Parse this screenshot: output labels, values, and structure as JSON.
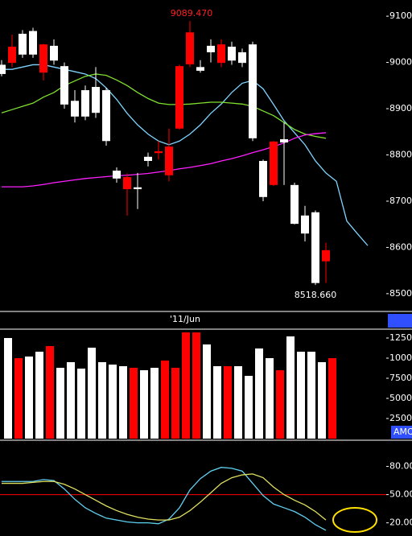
{
  "chart_data": {
    "type": "candlestick",
    "categories": [
      null,
      null,
      null,
      null,
      null,
      null,
      null,
      null,
      null,
      null,
      null,
      null,
      null,
      null,
      null,
      null,
      null,
      "'11/Jun",
      null,
      null,
      null,
      null,
      null,
      null,
      null,
      null,
      null,
      null,
      null,
      null,
      null,
      null,
      null,
      null,
      null,
      null
    ],
    "open": [
      8995,
      8999,
      9062,
      9068,
      8978,
      9036,
      8992,
      8917,
      8940,
      8947,
      8940,
      8766,
      8726,
      8730,
      8796,
      8804,
      8756,
      8857,
      8996,
      8990,
      9036,
      8999,
      9034,
      9022,
      9039,
      8787,
      8735,
      8834,
      8735,
      8669,
      8676,
      8570,
      null,
      null,
      null,
      null
    ],
    "high": [
      9005,
      9060,
      9070,
      9075,
      9040,
      9050,
      9000,
      8940,
      8950,
      8990,
      8945,
      8773,
      8760,
      8761,
      8805,
      8830,
      8857,
      8995,
      9089.47,
      9005,
      9050,
      9050,
      9045,
      9030,
      9045,
      8790,
      8830,
      8870,
      8740,
      8690,
      8680,
      8610,
      null,
      null,
      null,
      null
    ],
    "low": [
      8970,
      8990,
      9010,
      9010,
      8961,
      8995,
      8900,
      8870,
      8875,
      8880,
      8820,
      8740,
      8669,
      8683,
      8775,
      8790,
      8743,
      8855,
      8990,
      8978,
      9000,
      8990,
      8995,
      8990,
      8830,
      8700,
      8733,
      8735,
      8650,
      8613,
      8518.66,
      8523,
      null,
      null,
      null,
      null
    ],
    "close": [
      8975,
      9034,
      9017,
      9017,
      9039,
      9004,
      8909,
      8883,
      8883,
      8891,
      8830,
      8749,
      8752,
      8726,
      8787,
      8808,
      8818,
      8992,
      9065,
      8982,
      9022,
      9039,
      9004,
      8999,
      8836,
      8709,
      8829,
      8827,
      8651,
      8630,
      8523,
      8594,
      null,
      null,
      null,
      null
    ],
    "up_color": "#ff0000",
    "down_color": "#ffffff",
    "ylim": [
      8465,
      9135
    ],
    "yticks": [
      9100,
      9000,
      8900,
      8800,
      8700,
      8600,
      8500
    ],
    "annotations": [
      "9089.470",
      "8518.660"
    ],
    "series": [
      {
        "color": "#7fd4ff",
        "values": [
          8985,
          8985,
          8990,
          8995,
          8995,
          8990,
          8985,
          8980,
          8975,
          8965,
          8945,
          8920,
          8890,
          8865,
          8845,
          8830,
          8822,
          8830,
          8845,
          8865,
          8890,
          8910,
          8935,
          8955,
          8961,
          8943,
          8909,
          8874,
          8848,
          8822,
          8787,
          8761,
          8743,
          8657,
          8630,
          8604
        ]
      },
      {
        "color": "#7fe030",
        "values": [
          8891,
          8898,
          8905,
          8912,
          8925,
          8935,
          8950,
          8960,
          8970,
          8975,
          8972,
          8962,
          8950,
          8935,
          8922,
          8912,
          8909,
          8909,
          8910,
          8912,
          8914,
          8914,
          8912,
          8910,
          8905,
          8895,
          8885,
          8870,
          8855,
          8845,
          8840,
          8836,
          null,
          null,
          null,
          null
        ]
      },
      {
        "color": "#ff20ff",
        "values": [
          8731,
          8731,
          8731,
          8733,
          8736,
          8740,
          8743,
          8746,
          8749,
          8751,
          8753,
          8755,
          8756,
          8758,
          8760,
          8763,
          8766,
          8770,
          8773,
          8777,
          8781,
          8787,
          8792,
          8798,
          8805,
          8811,
          8818,
          8826,
          8836,
          8843,
          8846,
          8848,
          null,
          null,
          null,
          null
        ]
      }
    ],
    "volume": {
      "label": "AMO",
      "ylim": [
        0,
        13500
      ],
      "yticks": [
        12500,
        10000,
        7500,
        5000,
        2500
      ],
      "values": [
        12500,
        10000,
        10200,
        10800,
        11500,
        8800,
        9500,
        8700,
        11300,
        9500,
        9200,
        9000,
        8800,
        8500,
        8800,
        9700,
        8800,
        13200,
        13200,
        11700,
        9000,
        9000,
        9000,
        7800,
        11200,
        10000,
        8500,
        12700,
        10800,
        10800,
        9500,
        10000,
        null,
        null,
        null,
        null
      ]
    },
    "oscillator": {
      "ylim": [
        6,
        107
      ],
      "yticks": [
        {
          "value": 80,
          "label": "80.00"
        },
        {
          "value": 50,
          "label": "50.00"
        },
        {
          "value": 20,
          "label": "20.00"
        }
      ],
      "reference": 50,
      "reference_color": "#ff0000",
      "series": [
        {
          "color": "#60d0f0",
          "values": [
            64,
            64,
            64,
            64,
            66,
            65,
            56,
            45,
            36,
            30,
            25,
            23,
            21,
            20,
            20,
            19,
            24,
            36,
            55,
            67,
            75,
            79,
            78,
            75,
            62,
            49,
            40,
            36,
            32,
            26,
            18,
            12,
            null,
            null,
            null,
            null
          ]
        },
        {
          "color": "#e0e060",
          "values": [
            62,
            62,
            62,
            63,
            64,
            64,
            61,
            56,
            50,
            44,
            38,
            33,
            29,
            26,
            24,
            23,
            23,
            26,
            33,
            42,
            52,
            62,
            68,
            71,
            72,
            68,
            58,
            50,
            44,
            39,
            32,
            23,
            null,
            null,
            null,
            null
          ]
        }
      ]
    }
  }
}
